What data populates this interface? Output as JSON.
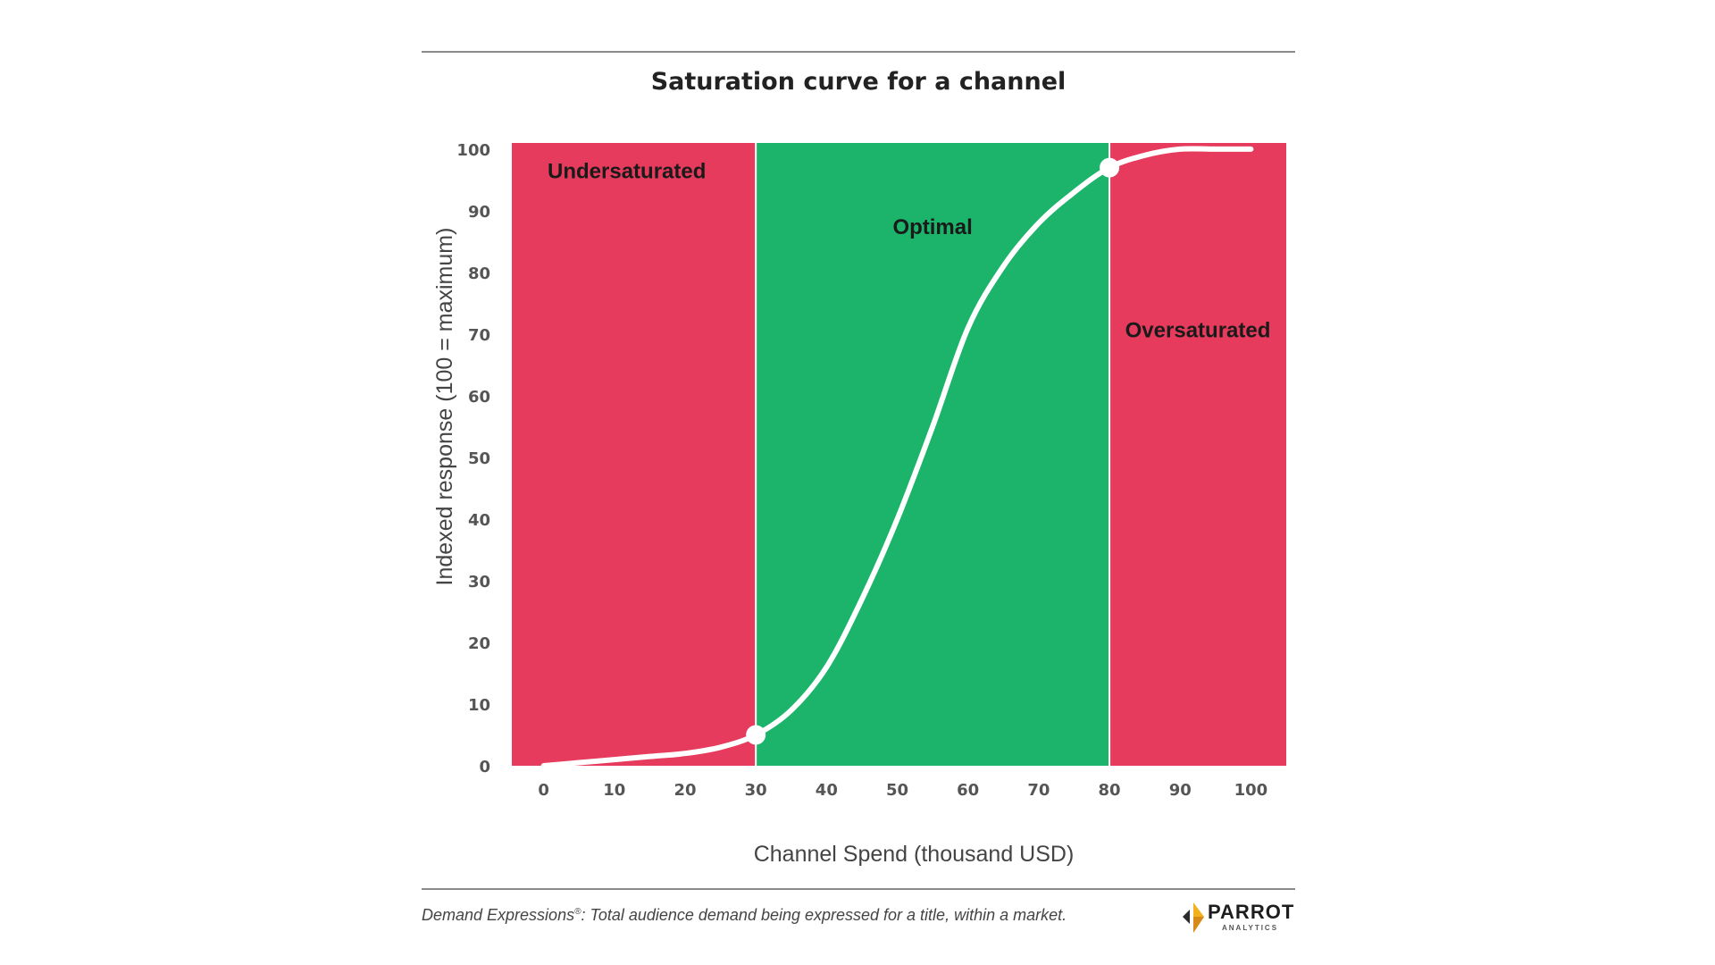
{
  "chart_data": {
    "type": "line",
    "title": "Saturation curve for a channel",
    "xlabel": "Channel Spend (thousand USD)",
    "ylabel": "Indexed response (100 = maximum)",
    "xlim": [
      -4.5,
      105
    ],
    "ylim": [
      0,
      101
    ],
    "x_ticks": [
      "0",
      "10",
      "20",
      "30",
      "40",
      "50",
      "60",
      "70",
      "80",
      "90",
      "100"
    ],
    "y_ticks": [
      "0",
      "10",
      "20",
      "30",
      "40",
      "50",
      "60",
      "70",
      "80",
      "90",
      "100"
    ],
    "grid": false,
    "regions": [
      {
        "label": "Undersaturated",
        "x_start": -4.5,
        "x_end": 30,
        "color": "#e63b5c"
      },
      {
        "label": "Optimal",
        "x_start": 30,
        "x_end": 80,
        "color": "#1bb46a"
      },
      {
        "label": "Oversaturated",
        "x_start": 80,
        "x_end": 105,
        "color": "#e63b5c"
      }
    ],
    "series": [
      {
        "color": "#ffffff",
        "x": [
          0,
          5,
          10,
          15,
          20,
          25,
          30,
          35,
          40,
          45,
          50,
          55,
          60,
          65,
          70,
          75,
          80,
          85,
          90,
          95,
          100
        ],
        "y": [
          0,
          0.5,
          1,
          1.5,
          2,
          3,
          5,
          9,
          16,
          27,
          40,
          55,
          71,
          81,
          88,
          93,
          97,
          99,
          100,
          100,
          100
        ]
      }
    ],
    "markers": [
      {
        "x": 30,
        "y": 5
      },
      {
        "x": 80,
        "y": 97
      }
    ]
  },
  "footer": {
    "note_term": "Demand Expressions",
    "note_mark": "®",
    "note_text": ":  Total audience demand being expressed for a title, within a market.",
    "logo_word": "PARROT",
    "logo_sub": "ANALYTICS"
  }
}
